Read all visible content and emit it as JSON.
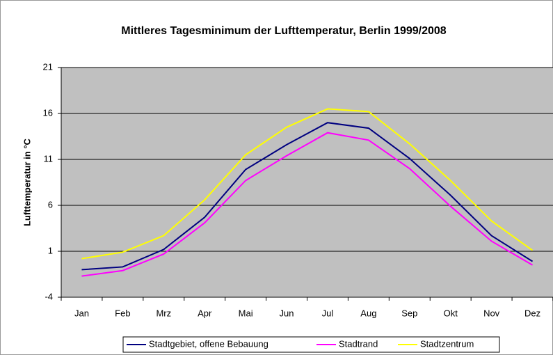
{
  "chart_data": {
    "type": "line",
    "title": "Mittleres Tagesminimum der Lufttemperatur,  Berlin 1999/2008",
    "ylabel": "Lufttemperatur in °C",
    "categories": [
      "Jan",
      "Feb",
      "Mrz",
      "Apr",
      "Mai",
      "Jun",
      "Jul",
      "Aug",
      "Sep",
      "Okt",
      "Nov",
      "Dez"
    ],
    "series": [
      {
        "name": "Stadtgebiet, offene Bebauung",
        "color": "#000080",
        "values": [
          -1.0,
          -0.7,
          1.2,
          4.7,
          9.9,
          12.6,
          15.0,
          14.4,
          11.1,
          7.1,
          2.7,
          -0.1
        ]
      },
      {
        "name": "Stadtrand",
        "color": "#ff00ff",
        "values": [
          -1.7,
          -1.1,
          0.7,
          4.1,
          8.7,
          11.4,
          13.9,
          13.1,
          10.0,
          5.9,
          2.1,
          -0.5
        ]
      },
      {
        "name": "Stadtzentrum",
        "color": "#ffff00",
        "values": [
          0.2,
          0.9,
          2.7,
          6.6,
          11.5,
          14.5,
          16.5,
          16.2,
          12.7,
          8.7,
          4.3,
          1.1
        ]
      }
    ],
    "ylim": [
      -4,
      21
    ],
    "yticks": [
      -4,
      1,
      6,
      11,
      16,
      21
    ],
    "grid": true,
    "legend": "bottom"
  }
}
